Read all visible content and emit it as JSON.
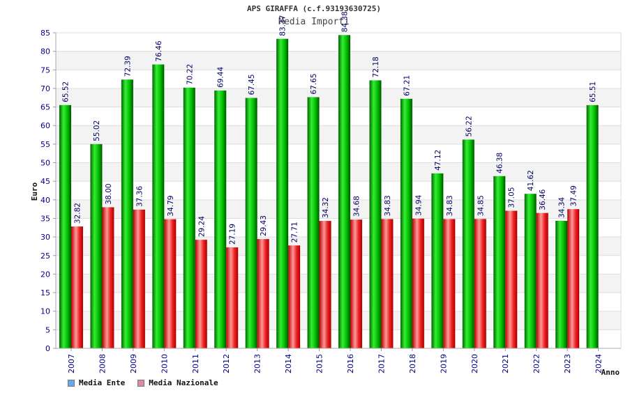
{
  "chart_data": {
    "type": "bar",
    "title": "APS GIRAFFA (c.f.93193630725)",
    "subtitle": "Media Importi",
    "xlabel": "Anno",
    "ylabel": "Euro",
    "ylim": [
      0,
      85
    ],
    "yticks": [
      0,
      5,
      10,
      15,
      20,
      25,
      30,
      35,
      40,
      45,
      50,
      55,
      60,
      65,
      70,
      75,
      80,
      85
    ],
    "grid": true,
    "legend_position": "bottom-left",
    "categories": [
      "2007",
      "2008",
      "2009",
      "2010",
      "2011",
      "2012",
      "2013",
      "2014",
      "2015",
      "2016",
      "2017",
      "2018",
      "2019",
      "2020",
      "2021",
      "2022",
      "2023",
      "2024"
    ],
    "series": [
      {
        "name": "Media Ente",
        "color": "#00aa00",
        "legend_color": "#66aaee",
        "values": [
          65.52,
          55.02,
          72.39,
          76.46,
          70.22,
          69.44,
          67.45,
          83.37,
          67.65,
          84.38,
          72.18,
          67.21,
          47.12,
          56.22,
          46.38,
          41.62,
          34.34,
          65.51
        ],
        "labels": [
          "65.52",
          "55.02",
          "72.39",
          "76.46",
          "70.22",
          "69.44",
          "67.45",
          "83.37",
          "67.65",
          "84.38",
          "72.18",
          "67.21",
          "47.12",
          "56.22",
          "46.38",
          "41.62",
          "34.34",
          "65.51"
        ]
      },
      {
        "name": "Media Nazionale",
        "color": "#dd1111",
        "legend_color": "#dd88aa",
        "values": [
          32.82,
          38.0,
          37.36,
          34.79,
          29.24,
          27.19,
          29.43,
          27.71,
          34.32,
          34.68,
          34.83,
          34.94,
          34.83,
          34.85,
          37.05,
          36.46,
          37.49,
          null
        ],
        "labels": [
          "32.82",
          "38.00",
          "37.36",
          "34.79",
          "29.24",
          "27.19",
          "29.43",
          "27.71",
          "34.32",
          "34.68",
          "34.83",
          "34.94",
          "34.83",
          "34.85",
          "37.05",
          "36.46",
          "37.49",
          ""
        ]
      }
    ]
  }
}
